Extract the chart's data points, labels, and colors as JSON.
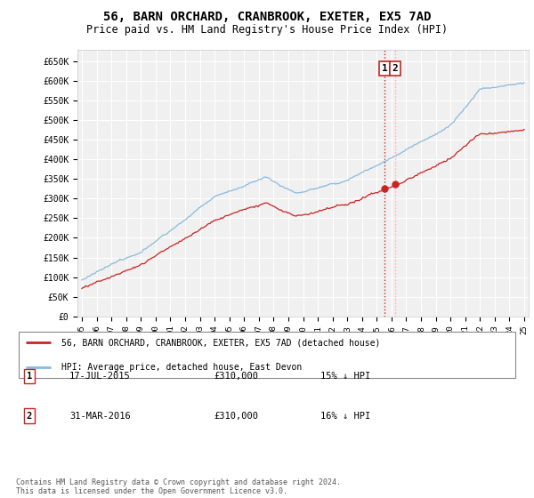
{
  "title": "56, BARN ORCHARD, CRANBROOK, EXETER, EX5 7AD",
  "subtitle": "Price paid vs. HM Land Registry's House Price Index (HPI)",
  "title_fontsize": 10,
  "subtitle_fontsize": 8.5,
  "ylabel_ticks": [
    "£0",
    "£50K",
    "£100K",
    "£150K",
    "£200K",
    "£250K",
    "£300K",
    "£350K",
    "£400K",
    "£450K",
    "£500K",
    "£550K",
    "£600K",
    "£650K"
  ],
  "ytick_values": [
    0,
    50000,
    100000,
    150000,
    200000,
    250000,
    300000,
    350000,
    400000,
    450000,
    500000,
    550000,
    600000,
    650000
  ],
  "ylim": [
    0,
    680000
  ],
  "xmin_year": 1995,
  "xmax_year": 2025,
  "xticks": [
    1995,
    1996,
    1997,
    1998,
    1999,
    2000,
    2001,
    2002,
    2003,
    2004,
    2005,
    2006,
    2007,
    2008,
    2009,
    2010,
    2011,
    2012,
    2013,
    2014,
    2015,
    2016,
    2017,
    2018,
    2019,
    2020,
    2021,
    2022,
    2023,
    2024,
    2025
  ],
  "bg_color": "#f0f0f0",
  "grid_color": "#ffffff",
  "hpi_color": "#88bbdd",
  "price_color": "#cc2222",
  "vline1_color": "#cc2222",
  "vline2_color": "#ffaaaa",
  "vline_style": ":",
  "transaction1_date": 2015.54,
  "transaction2_date": 2016.25,
  "legend_red_label": "56, BARN ORCHARD, CRANBROOK, EXETER, EX5 7AD (detached house)",
  "legend_blue_label": "HPI: Average price, detached house, East Devon",
  "footer_text": "Contains HM Land Registry data © Crown copyright and database right 2024.\nThis data is licensed under the Open Government Licence v3.0.",
  "table_rows": [
    {
      "num": "1",
      "date": "17-JUL-2015",
      "price": "£310,000",
      "hpi": "15% ↓ HPI"
    },
    {
      "num": "2",
      "date": "31-MAR-2016",
      "price": "£310,000",
      "hpi": "16% ↓ HPI"
    }
  ]
}
